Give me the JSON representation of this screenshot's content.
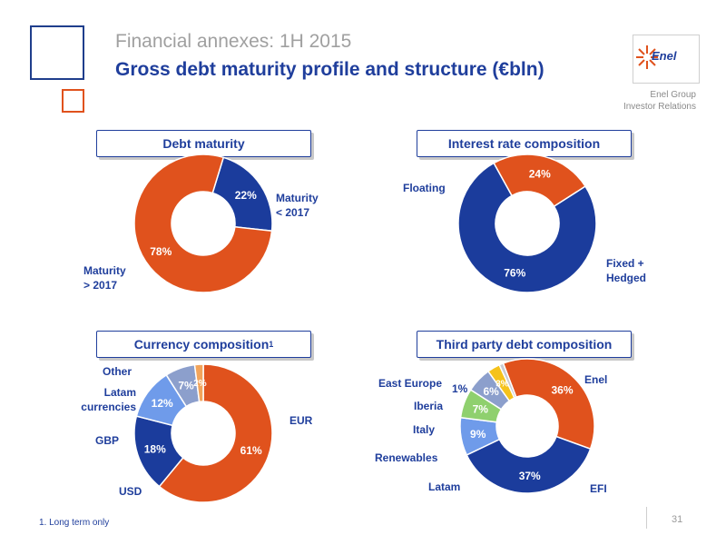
{
  "header": {
    "subtitle": "Financial annexes: 1H 2015",
    "title": "Gross debt maturity profile and structure (€bln)",
    "logo_text": "Enel",
    "org_line1": "Enel Group",
    "org_line2": "Investor Relations"
  },
  "footnote": "1.   Long term only",
  "page_number": "31",
  "chart_data": [
    {
      "type": "pie",
      "title": "Debt maturity",
      "slices": [
        {
          "name": "Maturity < 2017",
          "value": 22,
          "label": "22%",
          "color": "#1b3c9c"
        },
        {
          "name": "Maturity > 2017",
          "value": 78,
          "label": "78%",
          "color": "#e0521d"
        }
      ],
      "legend_labels": {
        "s0": [
          "Maturity",
          "< 2017"
        ],
        "s1": [
          "Maturity",
          "> 2017"
        ]
      }
    },
    {
      "type": "pie",
      "title": "Interest rate composition",
      "slices": [
        {
          "name": "Fixed + Hedged",
          "value": 76,
          "label": "76%",
          "color": "#1b3c9c"
        },
        {
          "name": "Floating",
          "value": 24,
          "label": "24%",
          "color": "#e0521d"
        }
      ],
      "legend_labels": {
        "floating": "Floating",
        "fixed1": "Fixed  +",
        "fixed2": "Hedged"
      }
    },
    {
      "type": "pie",
      "title": "Currency composition",
      "title_sup": "1",
      "slices": [
        {
          "name": "EUR",
          "value": 61,
          "label": "61%",
          "color": "#e0521d"
        },
        {
          "name": "USD",
          "value": 18,
          "label": "18%",
          "color": "#1b3c9c"
        },
        {
          "name": "GBP",
          "value": 12,
          "label": "12%",
          "color": "#6f9bea"
        },
        {
          "name": "Latam currencies",
          "value": 7,
          "label": "7%",
          "color": "#8c9fcc"
        },
        {
          "name": "Other",
          "value": 2,
          "label": "2%",
          "color": "#f2a45b"
        }
      ],
      "legend_labels": {
        "eur": "EUR",
        "usd": "USD",
        "gbp": "GBP",
        "latam1": "Latam",
        "latam2": "currencies",
        "other": "Other"
      }
    },
    {
      "type": "pie",
      "title": "Third party debt composition",
      "slices": [
        {
          "name": "Enel",
          "value": 36,
          "label": "36%",
          "color": "#e0521d"
        },
        {
          "name": "EFI",
          "value": 37,
          "label": "37%",
          "color": "#1b3c9c"
        },
        {
          "name": "Latam",
          "value": 9,
          "label": "9%",
          "color": "#6f9bea"
        },
        {
          "name": "Renewables",
          "value": 7,
          "label": "7%",
          "color": "#8fd06e"
        },
        {
          "name": "Italy",
          "value": 6,
          "label": "6%",
          "color": "#8c9fcc"
        },
        {
          "name": "Iberia",
          "value": 3,
          "label": "3%",
          "color": "#f5c21b"
        },
        {
          "name": "East Europe",
          "value": 1,
          "label": "1%",
          "color": "#c9cbd3"
        }
      ],
      "legend_labels": {
        "enel": "Enel",
        "efi": "EFI",
        "latam": "Latam",
        "renewables": "Renewables",
        "italy": "Italy",
        "iberia": "Iberia",
        "easteurope": "East Europe",
        "east_pct": "1%"
      }
    }
  ]
}
